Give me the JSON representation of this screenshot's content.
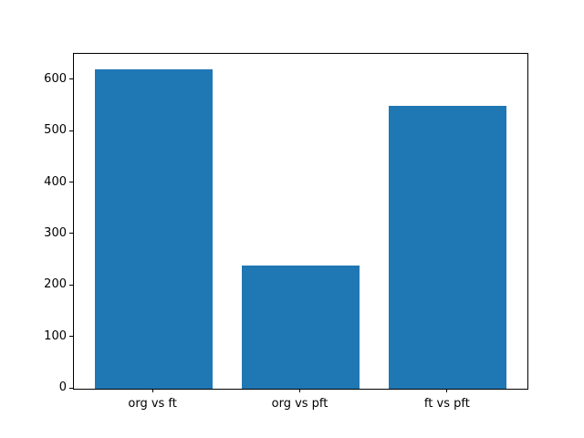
{
  "chart_data": {
    "type": "bar",
    "categories": [
      "org vs ft",
      "org vs pft",
      "ft vs pft"
    ],
    "values": [
      620,
      240,
      550
    ],
    "title": "",
    "xlabel": "",
    "ylabel": "",
    "ylim": [
      0,
      651
    ],
    "xlim": [
      -0.54,
      2.54
    ],
    "yticks": [
      0,
      100,
      200,
      300,
      400,
      500,
      600
    ],
    "ytick_labels": [
      "0",
      "100",
      "200",
      "300",
      "400",
      "500",
      "600"
    ],
    "bar_color": "#1f77b4",
    "bar_width_fraction": 0.8,
    "grid": false,
    "legend": null,
    "background_color": "#ffffff",
    "axes_edge_color": "#000000"
  }
}
